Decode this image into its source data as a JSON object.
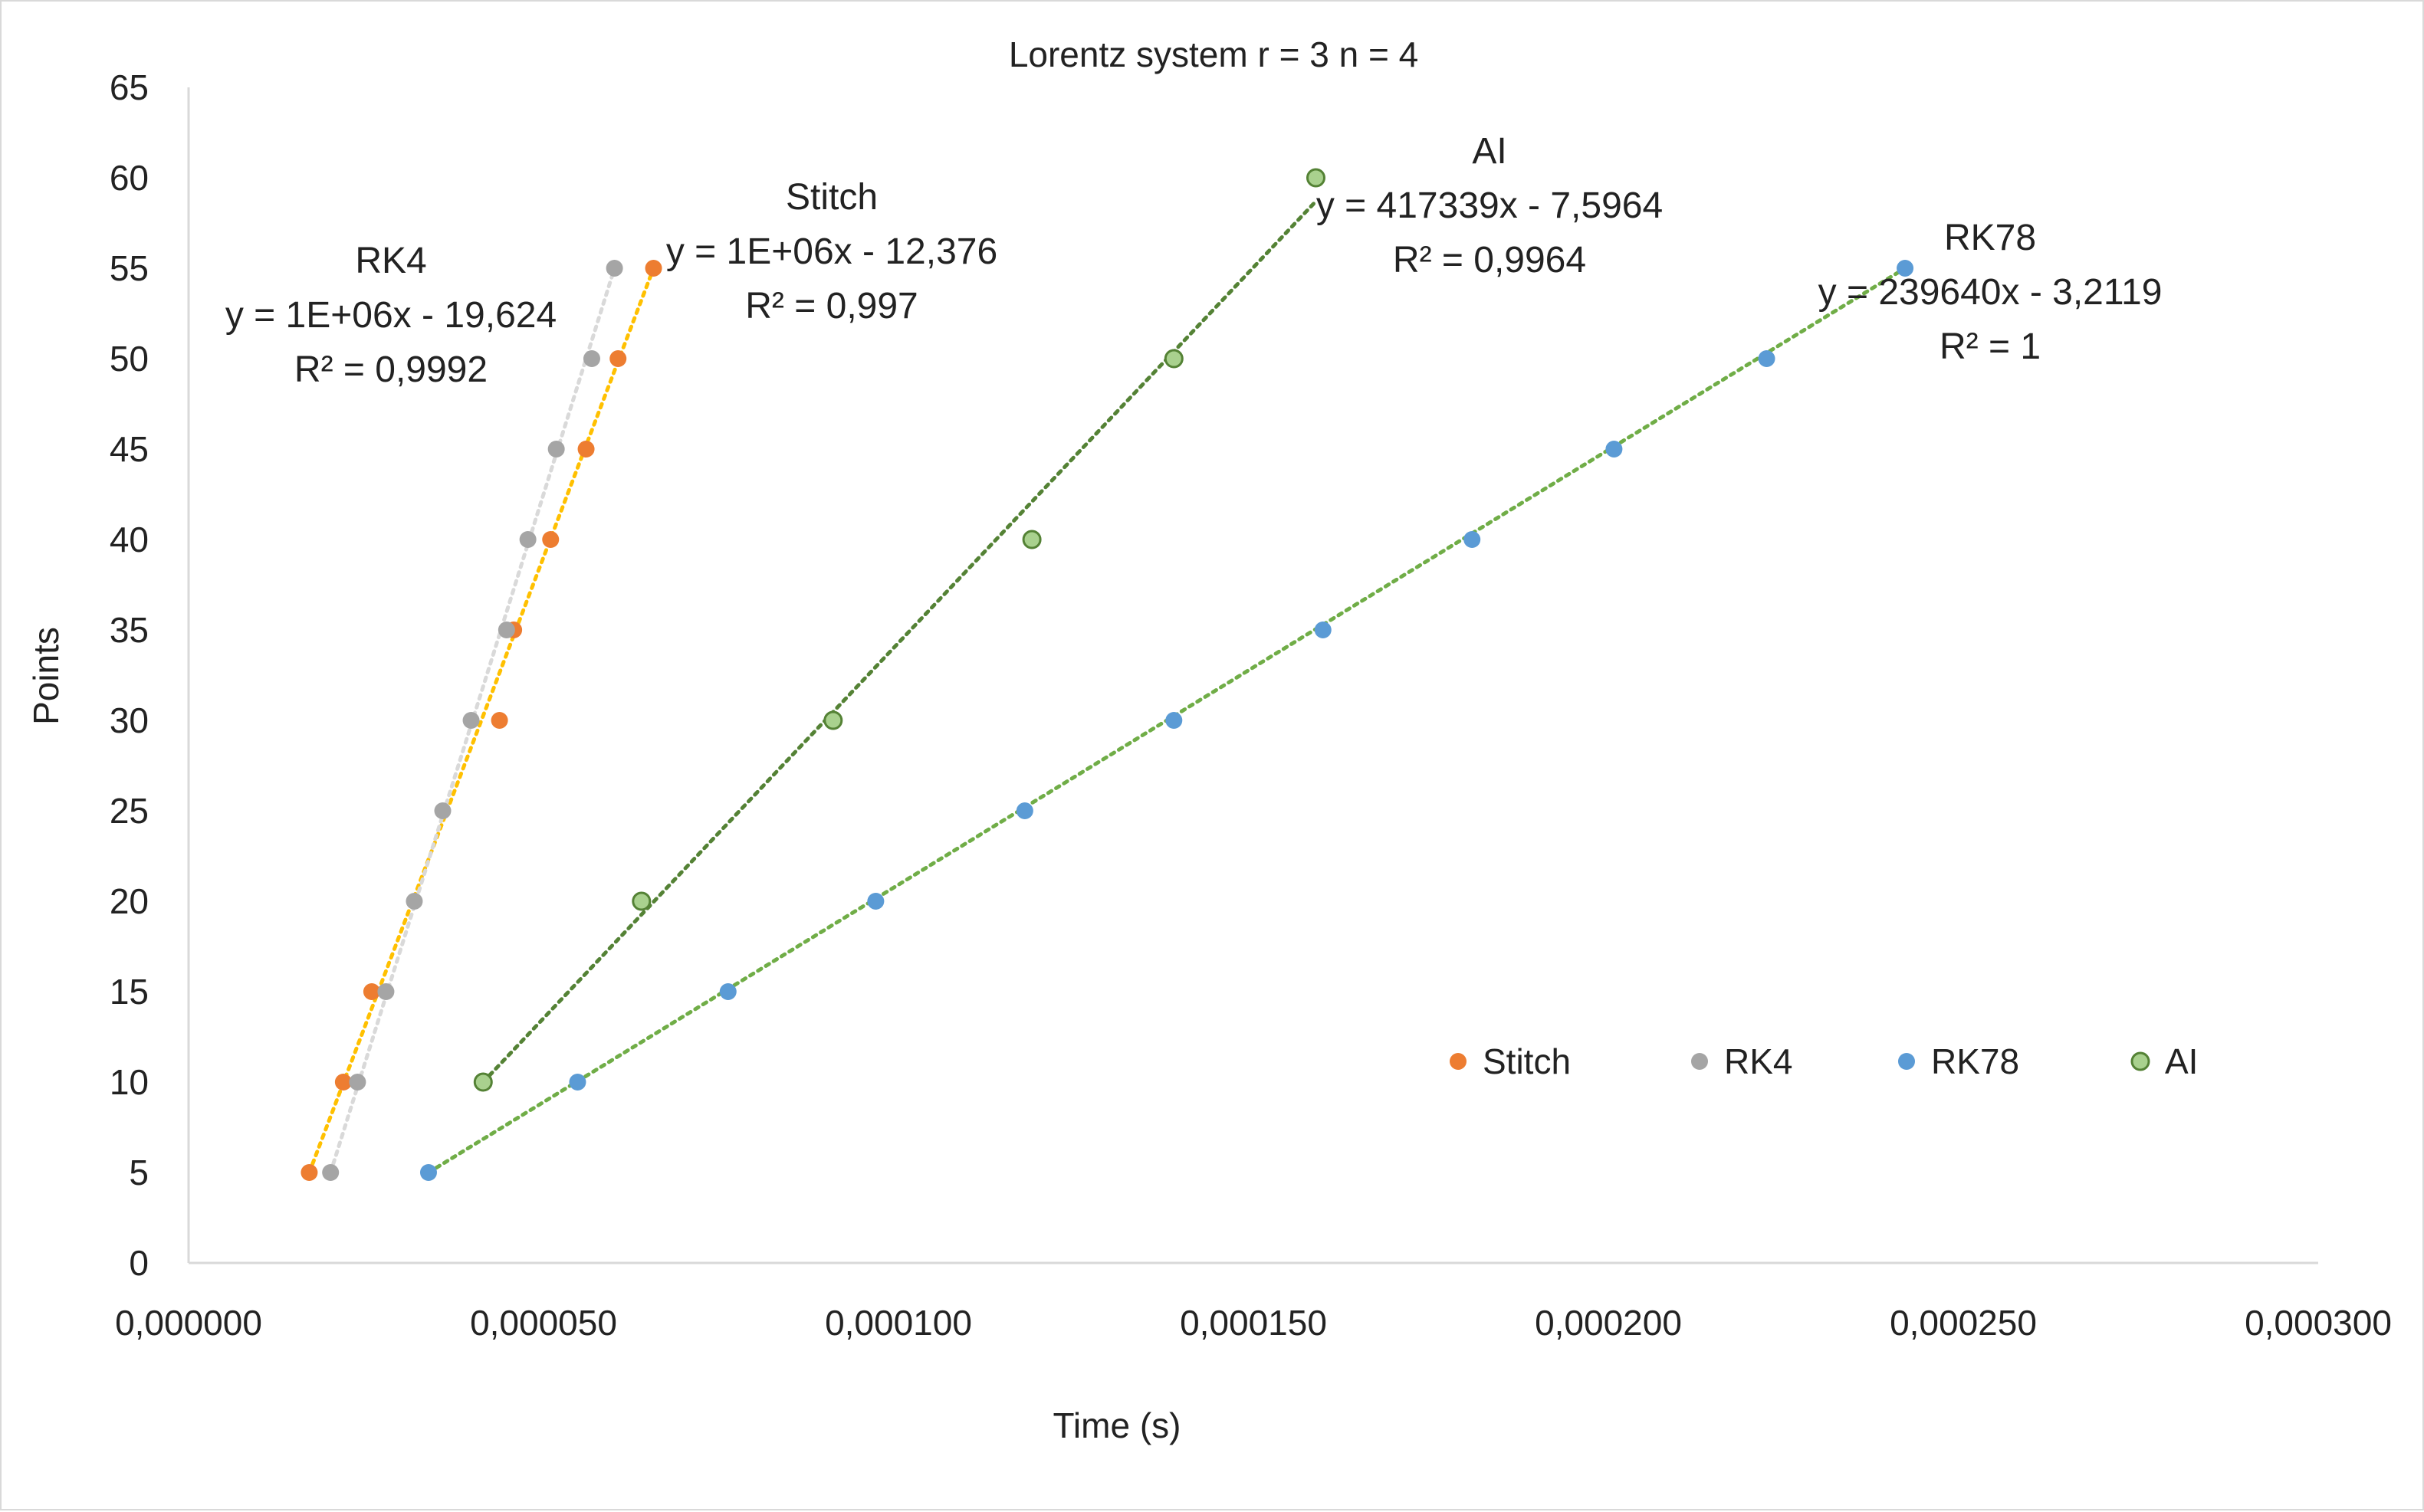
{
  "chart_data": {
    "type": "scatter",
    "title": "Lorentz system r = 3 n = 4",
    "xlabel": "Time (s)",
    "ylabel": "Points",
    "xlim": [
      0,
      0.0003
    ],
    "ylim": [
      0,
      65
    ],
    "x_ticks": [
      0,
      5e-05,
      0.0001,
      0.00015,
      0.0002,
      0.00025,
      0.0003
    ],
    "x_tick_labels": [
      "0,000000",
      "0,000050",
      "0,000100",
      "0,000150",
      "0,000200",
      "0,000250",
      "0,000300"
    ],
    "y_ticks": [
      0,
      5,
      10,
      15,
      20,
      25,
      30,
      35,
      40,
      45,
      50,
      55,
      60,
      65
    ],
    "y_tick_labels": [
      "0",
      "5",
      "10",
      "15",
      "20",
      "25",
      "30",
      "35",
      "40",
      "45",
      "50",
      "55",
      "60",
      "65"
    ],
    "grid": false,
    "legend_position": "right",
    "series": [
      {
        "name": "Stitch",
        "color": "#ED7D31",
        "trend_color": "#FFC000",
        "x": [
          1.7e-05,
          2.18e-05,
          2.58e-05,
          4.38e-05,
          4.58e-05,
          5.1e-05,
          5.6e-05,
          6.05e-05,
          6.55e-05
        ],
        "y": [
          5,
          10,
          15,
          30,
          35,
          40,
          45,
          50,
          55
        ],
        "trend_x": [
          1.7e-05,
          6.55e-05
        ],
        "trend_y": [
          5,
          55
        ],
        "equation": "y = 1E+06x - 12,376",
        "r2": "R² = 0,997"
      },
      {
        "name": "RK4",
        "color": "#A5A5A5",
        "trend_color": "#D9D9D9",
        "x": [
          2e-05,
          2.38e-05,
          2.78e-05,
          3.18e-05,
          3.58e-05,
          3.98e-05,
          4.48e-05,
          4.78e-05,
          5.18e-05,
          5.68e-05,
          6e-05
        ],
        "y": [
          5,
          10,
          15,
          20,
          25,
          30,
          35,
          40,
          45,
          50,
          55
        ],
        "trend_x": [
          2e-05,
          6e-05
        ],
        "trend_y": [
          5,
          55
        ],
        "equation": "y = 1E+06x - 19,624",
        "r2": "R² = 0,9992"
      },
      {
        "name": "RK78",
        "color": "#5B9BD5",
        "trend_color": "#70AD47",
        "x": [
          3.38e-05,
          5.48e-05,
          7.6e-05,
          9.68e-05,
          0.0001178,
          0.0001388,
          0.0001598,
          0.0001808,
          0.0002008,
          0.0002223,
          0.0002418
        ],
        "y": [
          5,
          10,
          15,
          20,
          25,
          30,
          35,
          40,
          45,
          50,
          55
        ],
        "trend_x": [
          3.38e-05,
          0.0002418
        ],
        "trend_y": [
          5,
          55
        ],
        "equation": "y = 239640x - 3,2119",
        "r2": "R² = 1"
      },
      {
        "name": "AI",
        "color": "#A9D18E",
        "trend_color": "#548235",
        "x": [
          4.15e-05,
          6.38e-05,
          9.08e-05,
          0.0001188,
          0.0001388,
          0.0001588
        ],
        "y": [
          10,
          20,
          30,
          40,
          50,
          60
        ],
        "trend_x": [
          4.15e-05,
          0.0001588
        ],
        "trend_y": [
          10,
          58.7
        ],
        "equation": "y = 417339x - 7,5964",
        "r2": "R² = 0,9964"
      }
    ],
    "annotations": [
      {
        "series": "RK4",
        "name": "RK4"
      },
      {
        "series": "Stitch",
        "name": "Stitch"
      },
      {
        "series": "AI",
        "name": "AI"
      },
      {
        "series": "RK78",
        "name": "RK78"
      }
    ]
  }
}
